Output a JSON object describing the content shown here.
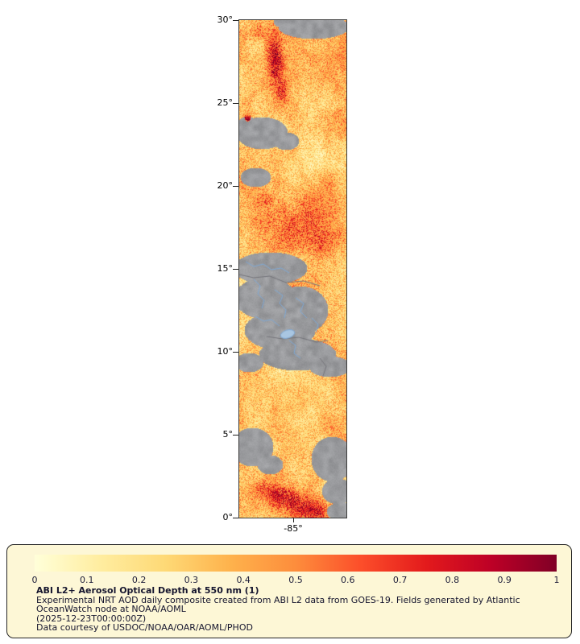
{
  "map": {
    "y_ticks": [
      "30°",
      "25°",
      "20°",
      "15°",
      "10°",
      "5°",
      "0°"
    ],
    "x_ticks": [
      "-85°"
    ],
    "no_data_color": "#9a9a9e",
    "water_line_color": "#7fa8d4",
    "lake_fill": "#a9c6e2",
    "border_line_color": "#74747a",
    "gray_ellipses": [
      [
        92,
        8,
        44,
        15
      ],
      [
        60,
        2,
        18,
        8
      ],
      [
        28,
        140,
        32,
        20
      ],
      [
        58,
        150,
        16,
        11
      ],
      [
        10,
        130,
        14,
        10
      ],
      [
        20,
        195,
        19,
        12
      ],
      [
        38,
        308,
        46,
        20
      ],
      [
        32,
        345,
        38,
        26
      ],
      [
        75,
        360,
        35,
        30
      ],
      [
        50,
        385,
        44,
        24
      ],
      [
        72,
        415,
        48,
        20
      ],
      [
        112,
        430,
        26,
        13
      ],
      [
        12,
        425,
        18,
        12
      ],
      [
        16,
        530,
        26,
        24
      ],
      [
        38,
        552,
        16,
        12
      ],
      [
        115,
        545,
        26,
        28
      ],
      [
        122,
        585,
        20,
        16
      ],
      [
        126,
        610,
        18,
        11
      ]
    ],
    "hotspots": [
      [
        44,
        48,
        9,
        26,
        0.65
      ],
      [
        52,
        88,
        8,
        14,
        0.4
      ],
      [
        20,
        15,
        15,
        12,
        0.2
      ],
      [
        10,
        122,
        4,
        4,
        0.95
      ],
      [
        70,
        252,
        42,
        34,
        0.22
      ],
      [
        100,
        275,
        22,
        18,
        0.16
      ],
      [
        30,
        225,
        10,
        8,
        0.2
      ],
      [
        52,
        590,
        20,
        12,
        0.5
      ],
      [
        92,
        610,
        26,
        10,
        0.55
      ],
      [
        28,
        580,
        12,
        9,
        0.3
      ],
      [
        70,
        600,
        15,
        10,
        0.35
      ],
      [
        66,
        470,
        60,
        40,
        -0.12
      ],
      [
        90,
        175,
        40,
        25,
        -0.1
      ]
    ],
    "rivers": [
      [
        [
          8,
          300
        ],
        [
          18,
          306
        ],
        [
          30,
          303
        ],
        [
          40,
          310
        ],
        [
          52,
          308
        ],
        [
          62,
          314
        ]
      ],
      [
        [
          18,
          322
        ],
        [
          26,
          330
        ],
        [
          23,
          340
        ],
        [
          31,
          348
        ],
        [
          28,
          358
        ]
      ],
      [
        [
          44,
          335
        ],
        [
          54,
          342
        ],
        [
          50,
          352
        ],
        [
          58,
          360
        ],
        [
          56,
          370
        ]
      ],
      [
        [
          70,
          345
        ],
        [
          80,
          352
        ],
        [
          76,
          362
        ],
        [
          84,
          370
        ]
      ],
      [
        [
          20,
          368
        ],
        [
          30,
          374
        ],
        [
          40,
          372
        ],
        [
          50,
          380
        ]
      ],
      [
        [
          62,
          398
        ],
        [
          70,
          404
        ],
        [
          68,
          414
        ],
        [
          76,
          420
        ]
      ],
      [
        [
          90,
          370
        ],
        [
          98,
          378
        ],
        [
          95,
          388
        ]
      ]
    ],
    "borders": [
      [
        [
          0,
          316
        ],
        [
          18,
          320
        ],
        [
          38,
          318
        ],
        [
          58,
          326
        ],
        [
          80,
          324
        ],
        [
          100,
          330
        ]
      ],
      [
        [
          34,
          393
        ],
        [
          54,
          396
        ],
        [
          74,
          394
        ],
        [
          96,
          400
        ],
        [
          110,
          398
        ]
      ],
      [
        [
          100,
          420
        ],
        [
          108,
          430
        ],
        [
          104,
          442
        ]
      ]
    ],
    "lake": [
      60,
      390,
      9,
      5
    ]
  },
  "colorbar": {
    "ticks": [
      "0",
      "0.1",
      "0.2",
      "0.3",
      "0.4",
      "0.5",
      "0.6",
      "0.7",
      "0.8",
      "0.9",
      "1"
    ],
    "stops": [
      "#FFFFD9",
      "#FFEDA0",
      "#FED976",
      "#FEB24C",
      "#FD8D3C",
      "#FC4E2A",
      "#E31A1C",
      "#BD0026",
      "#800026"
    ]
  },
  "caption": {
    "title": "ABI L2+ Aerosol Optical Depth at 550 nm (1)",
    "line1": "Experimental NRT AOD daily composite created from ABI L2 data from GOES-19. Fields generated by Atlantic",
    "line2": "OceanWatch node at NOAA/AOML",
    "line3": "(2025-12-23T00:00:00Z)",
    "line4": "Data courtesy of USDOC/NOAA/OAR/AOML/PHOD"
  }
}
